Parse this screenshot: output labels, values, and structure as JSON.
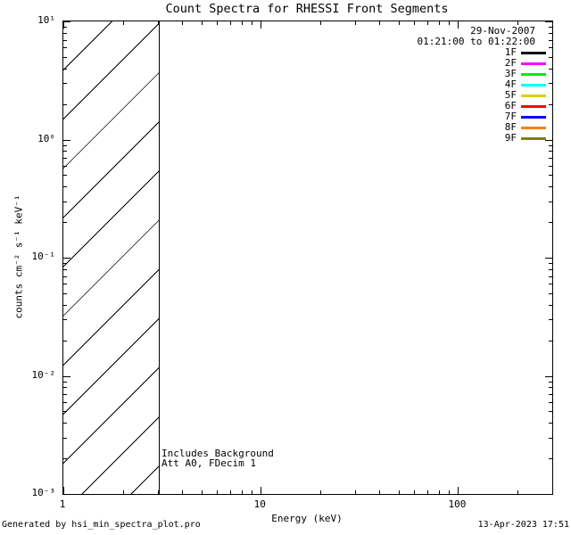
{
  "title": "Count Spectra for RHESSI Front Segments",
  "legend": {
    "date": "29-Nov-2007",
    "time_range": "01:21:00 to 01:22:00",
    "entries": [
      {
        "label": "1F",
        "color": "#000000"
      },
      {
        "label": "2F",
        "color": "#ff00ff"
      },
      {
        "label": "3F",
        "color": "#00ee00"
      },
      {
        "label": "4F",
        "color": "#00ffff"
      },
      {
        "label": "5F",
        "color": "#d6d600"
      },
      {
        "label": "6F",
        "color": "#ff0000"
      },
      {
        "label": "7F",
        "color": "#0000ff"
      },
      {
        "label": "8F",
        "color": "#ff8000"
      },
      {
        "label": "9F",
        "color": "#808000"
      }
    ]
  },
  "annotations": {
    "line1": "Includes Background",
    "line2": "Att A0, FDecim 1"
  },
  "footer": {
    "generated_by": "Generated by hsi_min_spectra_plot.pro",
    "timestamp": "13-Apr-2023 17:51"
  },
  "chart_data": {
    "type": "line",
    "title": "Count Spectra for RHESSI Front Segments",
    "xlabel": "Energy (keV)",
    "ylabel": "counts cm⁻² s⁻¹ keV⁻¹",
    "x_scale": "log",
    "y_scale": "log",
    "xlim": [
      1,
      300
    ],
    "ylim": [
      0.001,
      10
    ],
    "x_major_ticks": [
      1,
      10,
      100
    ],
    "x_tick_labels": [
      "1",
      "10",
      "100"
    ],
    "y_major_ticks": [
      10,
      1,
      0.1,
      0.01,
      0.001
    ],
    "y_tick_labels": [
      "10¹",
      "10⁰",
      "10⁻¹",
      "10⁻²",
      "10⁻³"
    ],
    "grid": false,
    "legend_position": "top-right",
    "hatched_region_kev": [
      1,
      3
    ],
    "series": []
  }
}
